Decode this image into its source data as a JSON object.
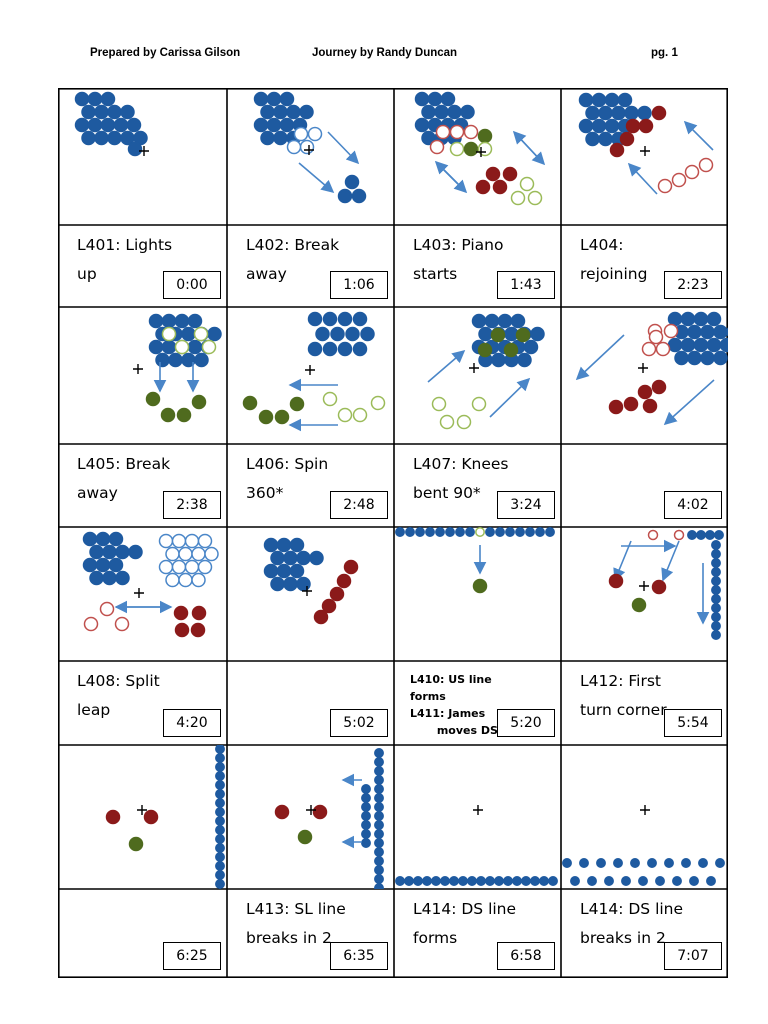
{
  "header": {
    "prepared_by": "Prepared by Carissa Gilson",
    "piece": "Journey by Randy Duncan",
    "page": "pg. 1"
  },
  "colors": {
    "blue": "#1e5aa0",
    "blue_outline": "#4a86c8",
    "red": "#8b1a1a",
    "red_outline": "#c0504d",
    "green": "#4f6b1e",
    "green_outline": "#9bbb59",
    "arrow": "#4a86c8"
  },
  "rows": [
    {
      "labels": [
        {
          "text": "L401: Lights up",
          "time": "0:00"
        },
        {
          "text": "L402: Break away",
          "time": "1:06"
        },
        {
          "text": "L403: Piano starts",
          "time": "1:43"
        },
        {
          "text": "L404: rejoining",
          "time": "2:23"
        }
      ]
    },
    {
      "labels": [
        {
          "text": "L405: Break away",
          "time": "2:38"
        },
        {
          "text": "L406: Spin 360*",
          "time": "2:48"
        },
        {
          "text": "L407: Knees bent 90*",
          "time": "3:24"
        },
        {
          "text": "",
          "time": "4:02"
        }
      ]
    },
    {
      "labels": [
        {
          "text": "L408: Split leap",
          "time": "4:20"
        },
        {
          "text": "",
          "time": "5:02"
        },
        {
          "text": "L410: US line forms\nL411: James\n       moves DS",
          "time": "5:20",
          "small": true
        },
        {
          "text": "L412: First turn corner",
          "time": "5:54"
        }
      ]
    },
    {
      "labels": [
        {
          "text": "",
          "time": "6:25"
        },
        {
          "text": "L413: SL line breaks in 2",
          "time": "6:35"
        },
        {
          "text": "L414: DS line forms",
          "time": "6:58"
        },
        {
          "text": "L414: DS line breaks in 2",
          "time": "7:07"
        }
      ]
    }
  ]
}
